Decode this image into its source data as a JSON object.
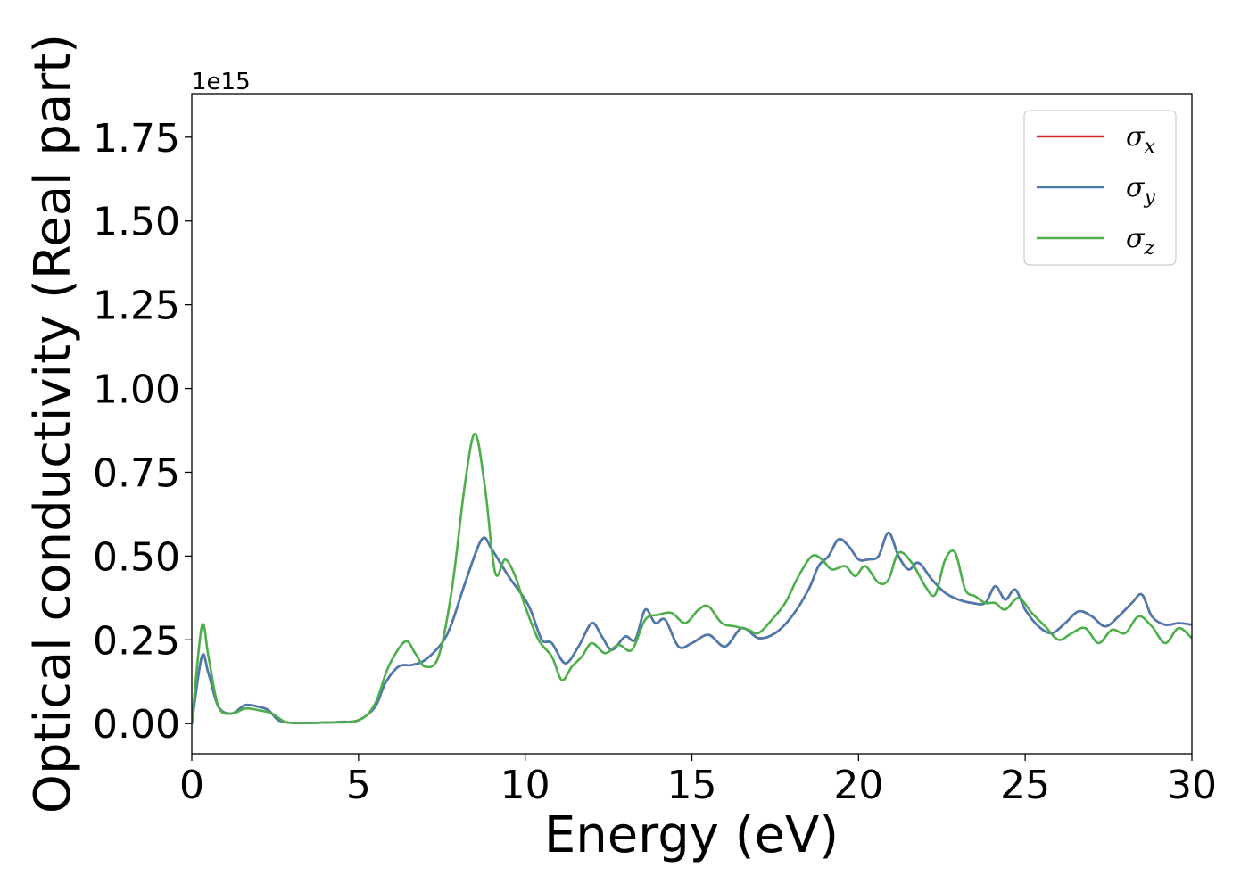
{
  "chart_data": {
    "type": "line",
    "xlabel": "Energy (eV)",
    "ylabel": "Optical conductivity (Real part)",
    "offset_text": "1e15",
    "xlim": [
      0,
      30
    ],
    "ylim": [
      -0.09,
      1.88
    ],
    "x_ticks": [
      0,
      5,
      10,
      15,
      20,
      25,
      30
    ],
    "x_tick_labels": [
      "0",
      "5",
      "10",
      "15",
      "20",
      "25",
      "30"
    ],
    "y_ticks": [
      0.0,
      0.25,
      0.5,
      0.75,
      1.0,
      1.25,
      1.5,
      1.75
    ],
    "y_tick_labels": [
      "0.00",
      "0.25",
      "0.50",
      "0.75",
      "1.00",
      "1.25",
      "1.50",
      "1.75"
    ],
    "grid": false,
    "legend_position": "top-right",
    "series": [
      {
        "name": "σ",
        "subscript": "x",
        "color": "#d62728",
        "x": [
          0,
          0.3,
          0.5,
          0.8,
          1.2,
          1.6,
          2.0,
          2.3,
          2.6,
          3.0,
          3.5,
          4.0,
          4.5,
          5.0,
          5.5,
          5.8,
          6.2,
          6.6,
          7.0,
          7.5,
          7.8,
          8.2,
          8.7,
          9.0,
          9.5,
          10.0,
          10.2,
          10.5,
          10.8,
          11.2,
          11.6,
          12.0,
          12.3,
          12.6,
          13.0,
          13.3,
          13.6,
          13.9,
          14.2,
          14.6,
          15.0,
          15.5,
          16.0,
          16.5,
          17.0,
          17.5,
          18.0,
          18.5,
          18.8,
          19.1,
          19.4,
          19.7,
          20.0,
          20.3,
          20.6,
          20.9,
          21.2,
          21.5,
          21.8,
          22.2,
          22.6,
          23.0,
          23.4,
          23.8,
          24.1,
          24.4,
          24.7,
          25.0,
          25.4,
          25.8,
          26.2,
          26.6,
          27.0,
          27.4,
          27.8,
          28.2,
          28.5,
          28.8,
          29.2,
          29.6,
          30.0
        ],
        "y": [
          0.0,
          0.2,
          0.15,
          0.05,
          0.03,
          0.055,
          0.05,
          0.04,
          0.01,
          0.002,
          0.002,
          0.003,
          0.005,
          0.01,
          0.05,
          0.12,
          0.17,
          0.175,
          0.19,
          0.24,
          0.3,
          0.42,
          0.55,
          0.52,
          0.44,
          0.37,
          0.33,
          0.25,
          0.24,
          0.18,
          0.23,
          0.3,
          0.26,
          0.22,
          0.26,
          0.25,
          0.34,
          0.3,
          0.31,
          0.23,
          0.24,
          0.265,
          0.23,
          0.285,
          0.255,
          0.27,
          0.32,
          0.4,
          0.47,
          0.5,
          0.55,
          0.53,
          0.49,
          0.49,
          0.5,
          0.57,
          0.5,
          0.46,
          0.48,
          0.43,
          0.39,
          0.37,
          0.36,
          0.36,
          0.41,
          0.37,
          0.4,
          0.34,
          0.29,
          0.27,
          0.3,
          0.335,
          0.32,
          0.29,
          0.32,
          0.36,
          0.385,
          0.32,
          0.295,
          0.3,
          0.295
        ]
      },
      {
        "name": "σ",
        "subscript": "y",
        "color": "#4a7bb0",
        "x": [
          0,
          0.3,
          0.5,
          0.8,
          1.2,
          1.6,
          2.0,
          2.3,
          2.6,
          3.0,
          3.5,
          4.0,
          4.5,
          5.0,
          5.5,
          5.8,
          6.2,
          6.6,
          7.0,
          7.5,
          7.8,
          8.2,
          8.7,
          9.0,
          9.5,
          10.0,
          10.2,
          10.5,
          10.8,
          11.2,
          11.6,
          12.0,
          12.3,
          12.6,
          13.0,
          13.3,
          13.6,
          13.9,
          14.2,
          14.6,
          15.0,
          15.5,
          16.0,
          16.5,
          17.0,
          17.5,
          18.0,
          18.5,
          18.8,
          19.1,
          19.4,
          19.7,
          20.0,
          20.3,
          20.6,
          20.9,
          21.2,
          21.5,
          21.8,
          22.2,
          22.6,
          23.0,
          23.4,
          23.8,
          24.1,
          24.4,
          24.7,
          25.0,
          25.4,
          25.8,
          26.2,
          26.6,
          27.0,
          27.4,
          27.8,
          28.2,
          28.5,
          28.8,
          29.2,
          29.6,
          30.0
        ],
        "y": [
          0.0,
          0.2,
          0.15,
          0.05,
          0.03,
          0.055,
          0.05,
          0.04,
          0.01,
          0.002,
          0.002,
          0.003,
          0.005,
          0.01,
          0.05,
          0.12,
          0.17,
          0.175,
          0.19,
          0.24,
          0.3,
          0.42,
          0.55,
          0.52,
          0.44,
          0.37,
          0.33,
          0.25,
          0.24,
          0.18,
          0.23,
          0.3,
          0.26,
          0.22,
          0.26,
          0.25,
          0.34,
          0.3,
          0.31,
          0.23,
          0.24,
          0.265,
          0.23,
          0.285,
          0.255,
          0.27,
          0.32,
          0.4,
          0.47,
          0.5,
          0.55,
          0.53,
          0.49,
          0.49,
          0.5,
          0.57,
          0.5,
          0.46,
          0.48,
          0.43,
          0.39,
          0.37,
          0.36,
          0.36,
          0.41,
          0.37,
          0.4,
          0.34,
          0.29,
          0.27,
          0.3,
          0.335,
          0.32,
          0.29,
          0.32,
          0.36,
          0.385,
          0.32,
          0.295,
          0.3,
          0.295
        ]
      },
      {
        "name": "σ",
        "subscript": "z",
        "color": "#4daf4a",
        "x": [
          0,
          0.3,
          0.5,
          0.8,
          1.2,
          1.6,
          2.0,
          2.4,
          2.8,
          3.2,
          4.0,
          5.0,
          5.5,
          5.9,
          6.4,
          6.7,
          7.0,
          7.4,
          7.8,
          8.2,
          8.5,
          8.8,
          9.1,
          9.4,
          9.7,
          10.0,
          10.4,
          10.8,
          11.1,
          11.4,
          11.7,
          12.0,
          12.4,
          12.8,
          13.2,
          13.6,
          14.0,
          14.4,
          14.8,
          15.2,
          15.5,
          15.9,
          16.3,
          16.7,
          17.0,
          17.4,
          17.8,
          18.2,
          18.6,
          18.9,
          19.2,
          19.6,
          19.9,
          20.2,
          20.6,
          20.9,
          21.2,
          21.6,
          22.0,
          22.3,
          22.6,
          22.9,
          23.2,
          23.5,
          23.8,
          24.1,
          24.4,
          24.8,
          25.2,
          25.6,
          26.0,
          26.4,
          26.8,
          27.2,
          27.6,
          28.0,
          28.4,
          28.8,
          29.2,
          29.6,
          30.0
        ],
        "y": [
          0.0,
          0.29,
          0.2,
          0.05,
          0.03,
          0.045,
          0.04,
          0.03,
          0.005,
          0.002,
          0.003,
          0.01,
          0.06,
          0.17,
          0.245,
          0.21,
          0.17,
          0.2,
          0.4,
          0.72,
          0.865,
          0.7,
          0.45,
          0.49,
          0.44,
          0.35,
          0.25,
          0.2,
          0.13,
          0.17,
          0.2,
          0.24,
          0.21,
          0.235,
          0.22,
          0.31,
          0.325,
          0.33,
          0.3,
          0.34,
          0.35,
          0.3,
          0.29,
          0.28,
          0.27,
          0.31,
          0.36,
          0.44,
          0.5,
          0.49,
          0.46,
          0.47,
          0.44,
          0.47,
          0.42,
          0.43,
          0.51,
          0.48,
          0.41,
          0.385,
          0.49,
          0.51,
          0.4,
          0.38,
          0.36,
          0.36,
          0.34,
          0.375,
          0.33,
          0.29,
          0.25,
          0.27,
          0.285,
          0.24,
          0.28,
          0.27,
          0.32,
          0.29,
          0.24,
          0.285,
          0.255
        ]
      }
    ]
  }
}
